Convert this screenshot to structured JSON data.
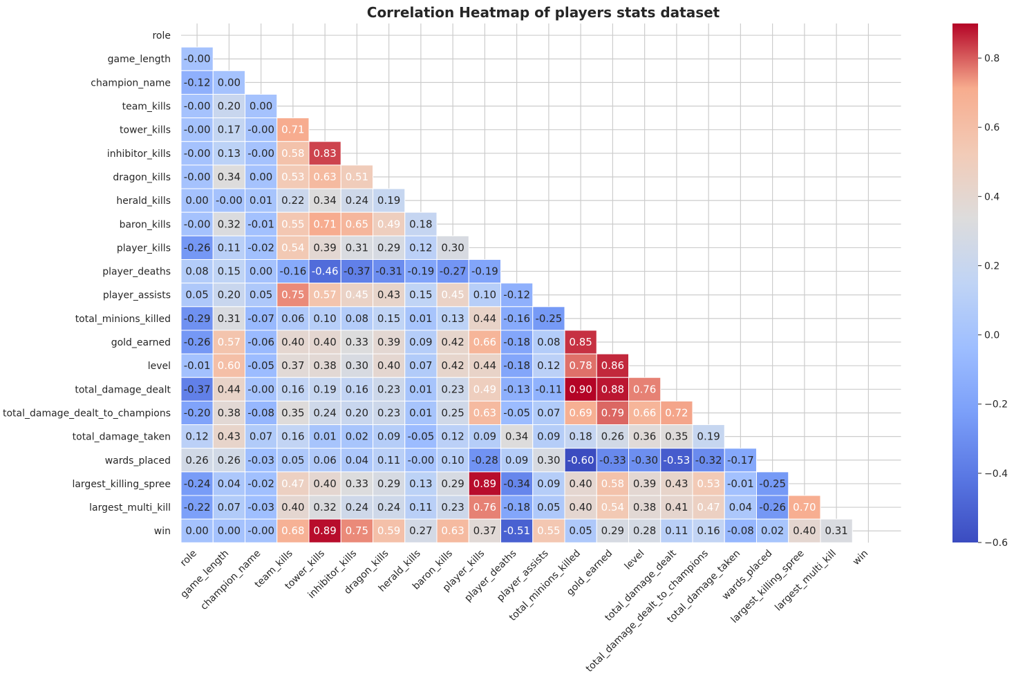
{
  "chart_data": {
    "type": "heatmap",
    "title": "Correlation Heatmap of players stats dataset",
    "mask": "upper-triangle-including-diagonal",
    "colormap": "coolwarm",
    "vmin": -0.6,
    "vmax": 0.9,
    "grid": true,
    "variables": [
      "role",
      "game_length",
      "champion_name",
      "team_kills",
      "tower_kills",
      "inhibitor_kills",
      "dragon_kills",
      "herald_kills",
      "baron_kills",
      "player_kills",
      "player_deaths",
      "player_assists",
      "total_minions_killed",
      "gold_earned",
      "level",
      "total_damage_dealt",
      "total_damage_dealt_to_champions",
      "total_damage_taken",
      "wards_placed",
      "largest_killing_spree",
      "largest_multi_kill",
      "win"
    ],
    "matrix": [
      [],
      [
        "-0.00"
      ],
      [
        "-0.12",
        "0.00"
      ],
      [
        "-0.00",
        "0.20",
        "0.00"
      ],
      [
        "-0.00",
        "0.17",
        "-0.00",
        "0.71"
      ],
      [
        "-0.00",
        "0.13",
        "-0.00",
        "0.58",
        "0.83"
      ],
      [
        "-0.00",
        "0.34",
        "0.00",
        "0.53",
        "0.63",
        "0.51"
      ],
      [
        "0.00",
        "-0.00",
        "0.01",
        "0.22",
        "0.34",
        "0.24",
        "0.19"
      ],
      [
        "-0.00",
        "0.32",
        "-0.01",
        "0.55",
        "0.71",
        "0.65",
        "0.49",
        "0.18"
      ],
      [
        "-0.26",
        "0.11",
        "-0.02",
        "0.54",
        "0.39",
        "0.31",
        "0.29",
        "0.12",
        "0.30"
      ],
      [
        "0.08",
        "0.15",
        "0.00",
        "-0.16",
        "-0.46",
        "-0.37",
        "-0.31",
        "-0.19",
        "-0.27",
        "-0.19"
      ],
      [
        "0.05",
        "0.20",
        "0.05",
        "0.75",
        "0.57",
        "0.45",
        "0.43",
        "0.15",
        "0.45",
        "0.10",
        "-0.12"
      ],
      [
        "-0.29",
        "0.31",
        "-0.07",
        "0.06",
        "0.10",
        "0.08",
        "0.15",
        "0.01",
        "0.13",
        "0.44",
        "-0.16",
        "-0.25"
      ],
      [
        "-0.26",
        "0.57",
        "-0.06",
        "0.40",
        "0.40",
        "0.33",
        "0.39",
        "0.09",
        "0.42",
        "0.66",
        "-0.18",
        "0.08",
        "0.85"
      ],
      [
        "-0.01",
        "0.60",
        "-0.05",
        "0.37",
        "0.38",
        "0.30",
        "0.40",
        "0.07",
        "0.42",
        "0.44",
        "-0.18",
        "0.12",
        "0.78",
        "0.86"
      ],
      [
        "-0.37",
        "0.44",
        "-0.00",
        "0.16",
        "0.19",
        "0.16",
        "0.23",
        "0.01",
        "0.23",
        "0.49",
        "-0.13",
        "-0.11",
        "0.90",
        "0.88",
        "0.76"
      ],
      [
        "-0.20",
        "0.38",
        "-0.08",
        "0.35",
        "0.24",
        "0.20",
        "0.23",
        "0.01",
        "0.25",
        "0.63",
        "-0.05",
        "0.07",
        "0.69",
        "0.79",
        "0.66",
        "0.72"
      ],
      [
        "0.12",
        "0.43",
        "0.07",
        "0.16",
        "0.01",
        "0.02",
        "0.09",
        "-0.05",
        "0.12",
        "0.09",
        "0.34",
        "0.09",
        "0.18",
        "0.26",
        "0.36",
        "0.35",
        "0.19"
      ],
      [
        "0.26",
        "0.26",
        "-0.03",
        "0.05",
        "0.06",
        "0.04",
        "0.11",
        "-0.00",
        "0.10",
        "-0.28",
        "0.09",
        "0.30",
        "-0.60",
        "-0.33",
        "-0.30",
        "-0.53",
        "-0.32",
        "-0.17"
      ],
      [
        "-0.24",
        "0.04",
        "-0.02",
        "0.47",
        "0.40",
        "0.33",
        "0.29",
        "0.13",
        "0.29",
        "0.89",
        "-0.34",
        "0.09",
        "0.40",
        "0.58",
        "0.39",
        "0.43",
        "0.53",
        "-0.01",
        "-0.25"
      ],
      [
        "-0.22",
        "0.07",
        "-0.03",
        "0.40",
        "0.32",
        "0.24",
        "0.24",
        "0.11",
        "0.23",
        "0.76",
        "-0.18",
        "0.05",
        "0.40",
        "0.54",
        "0.38",
        "0.41",
        "0.47",
        "0.04",
        "-0.26",
        "0.70"
      ],
      [
        "0.00",
        "0.00",
        "-0.00",
        "0.68",
        "0.89",
        "0.75",
        "0.59",
        "0.27",
        "0.63",
        "0.37",
        "-0.51",
        "0.55",
        "0.05",
        "0.29",
        "0.28",
        "0.11",
        "0.16",
        "-0.08",
        "0.02",
        "0.40",
        "0.31"
      ]
    ],
    "colorbar": {
      "ticks": [
        "0.8",
        "0.6",
        "0.4",
        "0.2",
        "0.0",
        "−0.2",
        "−0.4",
        "−0.6"
      ],
      "tick_values": [
        0.8,
        0.6,
        0.4,
        0.2,
        0.0,
        -0.2,
        -0.4,
        -0.6
      ]
    }
  }
}
